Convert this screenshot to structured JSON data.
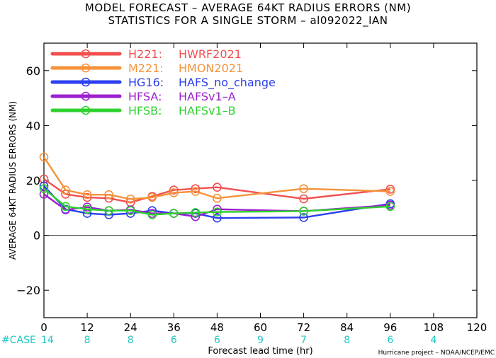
{
  "titles": {
    "line1": "MODEL FORECAST – AVERAGE 64KT RADIUS ERRORS (NM)",
    "line2": "STATISTICS FOR A SINGLE STORM – al092022_IAN"
  },
  "chart_data": {
    "type": "line",
    "title": "MODEL FORECAST – AVERAGE 64KT RADIUS ERRORS (NM)",
    "subtitle": "STATISTICS FOR A SINGLE STORM – al092022_IAN",
    "xlabel": "Forecast lead time (hr)",
    "ylabel": "AVERAGE 64KT RADIUS ERRORS (NM)",
    "xlim": [
      0,
      120
    ],
    "ylim": [
      -30,
      70
    ],
    "xticks": [
      0,
      12,
      24,
      36,
      48,
      60,
      72,
      84,
      96,
      108,
      120
    ],
    "yticks": [
      -20,
      0,
      20,
      40,
      60
    ],
    "grid": false,
    "legend_position": "top-left",
    "zero_line": true,
    "case_label": "#CASE",
    "case_counts": [
      {
        "x": 0,
        "n": "14"
      },
      {
        "x": 12,
        "n": "8"
      },
      {
        "x": 24,
        "n": "8"
      },
      {
        "x": 36,
        "n": "6"
      },
      {
        "x": 48,
        "n": "6"
      },
      {
        "x": 60,
        "n": "9"
      },
      {
        "x": 72,
        "n": "7"
      },
      {
        "x": 84,
        "n": "8"
      },
      {
        "x": 96,
        "n": "6"
      },
      {
        "x": 108,
        "n": "4"
      }
    ],
    "credit": "Hurricane project – NOAA/NCEP/EMC",
    "series": [
      {
        "name": "H221:",
        "label": "HWRF2021",
        "color": "#f24e4e",
        "x": [
          0,
          6,
          12,
          18,
          24,
          30,
          36,
          42,
          48,
          72,
          96
        ],
        "y": [
          20.5,
          15.0,
          13.8,
          13.5,
          12.0,
          14.2,
          16.5,
          17.0,
          17.5,
          13.3,
          16.8
        ]
      },
      {
        "name": "M221:",
        "label": "HMON2021",
        "color": "#f5923a",
        "x": [
          0,
          6,
          12,
          18,
          24,
          30,
          36,
          42,
          48,
          72,
          96
        ],
        "y": [
          28.5,
          16.5,
          14.8,
          14.8,
          13.2,
          13.8,
          15.5,
          16.0,
          13.5,
          17.0,
          16.0
        ]
      },
      {
        "name": "HG16:",
        "label": "HAFS_no_change",
        "color": "#2b3ff0",
        "x": [
          0,
          6,
          12,
          18,
          24,
          30,
          36,
          42,
          48,
          72,
          96
        ],
        "y": [
          18.0,
          9.5,
          8.0,
          7.5,
          8.0,
          9.0,
          8.0,
          8.0,
          6.3,
          6.5,
          11.5
        ]
      },
      {
        "name": "HFSA:",
        "label": "HAFSv1–A",
        "color": "#9c1fce",
        "x": [
          0,
          6,
          12,
          18,
          24,
          30,
          36,
          42,
          48,
          72,
          96
        ],
        "y": [
          15.0,
          9.3,
          10.3,
          9.0,
          9.3,
          8.0,
          8.0,
          6.8,
          9.5,
          8.8,
          11.0
        ]
      },
      {
        "name": "HFSB:",
        "label": "HAFSv1–B",
        "color": "#2ed12e",
        "x": [
          0,
          6,
          12,
          18,
          24,
          30,
          36,
          42,
          48,
          72,
          96
        ],
        "y": [
          17.0,
          10.5,
          9.5,
          9.0,
          9.0,
          7.5,
          8.0,
          8.3,
          8.5,
          8.8,
          10.5
        ]
      }
    ]
  }
}
